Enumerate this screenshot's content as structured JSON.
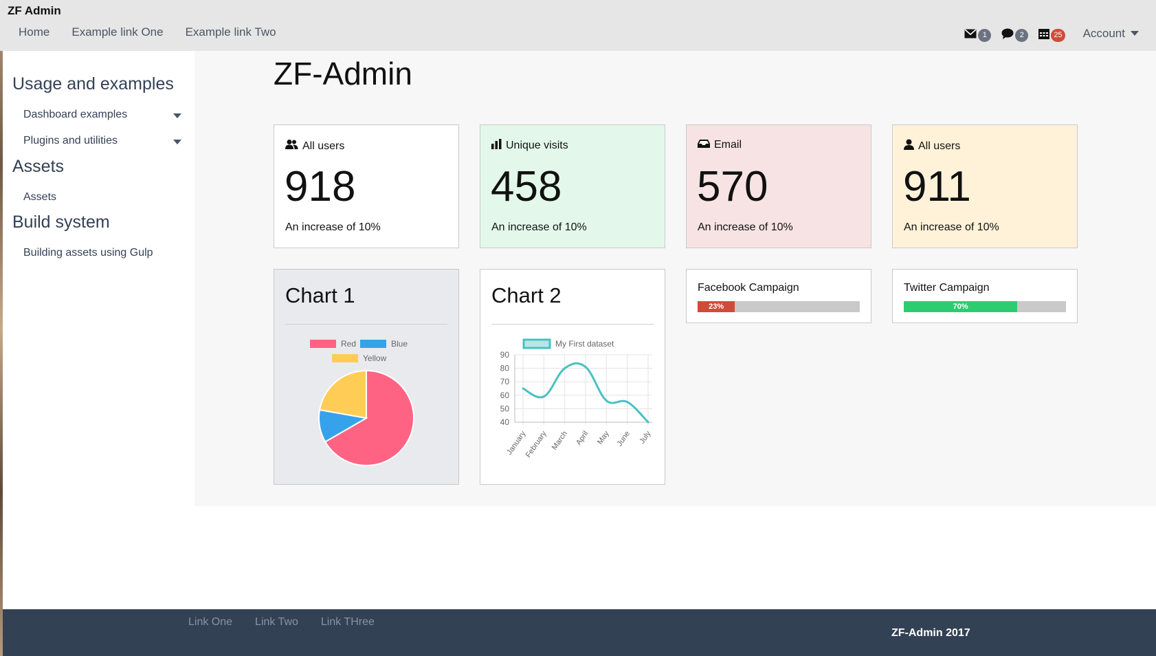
{
  "app": {
    "brand": "ZF Admin"
  },
  "nav": {
    "links": [
      "Home",
      "Example link One",
      "Example link Two"
    ],
    "notifications": [
      {
        "icon": "envelope-icon",
        "count": "1",
        "color": "#6b7280"
      },
      {
        "icon": "comment-icon",
        "count": "2",
        "color": "#6b7280"
      },
      {
        "icon": "calendar-icon",
        "count": "25",
        "color": "#d14b3a"
      }
    ],
    "account_label": "Account"
  },
  "sidebar": {
    "sections": [
      {
        "heading": "Usage and examples",
        "items": [
          {
            "label": "Dashboard examples",
            "dropdown": true
          },
          {
            "label": "Plugins and utilities",
            "dropdown": true
          }
        ]
      },
      {
        "heading": "Assets",
        "items": [
          {
            "label": "Assets",
            "dropdown": false
          }
        ]
      },
      {
        "heading": "Build system",
        "items": [
          {
            "label": "Building assets using Gulp",
            "dropdown": false
          }
        ]
      }
    ]
  },
  "main": {
    "title": "ZF-Admin",
    "stats": [
      {
        "icon": "users-icon",
        "label": "All users",
        "value": "918",
        "note": "An increase of 10%",
        "bg": "#ffffff"
      },
      {
        "icon": "bar-chart-icon",
        "label": "Unique visits",
        "value": "458",
        "note": "An increase of 10%",
        "bg": "#e3f8ea"
      },
      {
        "icon": "inbox-icon",
        "label": "Email",
        "value": "570",
        "note": "An increase of 10%",
        "bg": "#f7e3e3"
      },
      {
        "icon": "user-icon",
        "label": "All users",
        "value": "911",
        "note": "An increase of 10%",
        "bg": "#fff2d9"
      }
    ],
    "campaigns": [
      {
        "label": "Facebook Campaign",
        "percent": 23,
        "percent_label": "23%",
        "color": "#d14b3a"
      },
      {
        "label": "Twitter Campaign",
        "percent": 70,
        "percent_label": "70%",
        "color": "#2ecc71"
      }
    ]
  },
  "chart_data": [
    {
      "type": "pie",
      "title": "Chart 1",
      "categories": [
        "Red",
        "Blue",
        "Yellow"
      ],
      "values": [
        300,
        50,
        100
      ],
      "colors": [
        "#ff6384",
        "#36a2eb",
        "#ffcd56"
      ],
      "legend": "top"
    },
    {
      "type": "line",
      "title": "Chart 2",
      "categories": [
        "January",
        "February",
        "March",
        "April",
        "May",
        "June",
        "July"
      ],
      "series": [
        {
          "name": "My First dataset",
          "values": [
            65,
            59,
            80,
            81,
            56,
            55,
            40
          ],
          "color": "#4bc0c0"
        }
      ],
      "ylim": [
        40,
        90
      ],
      "yticks": [
        40,
        50,
        60,
        70,
        80,
        90
      ],
      "grid": true,
      "legend": "top"
    }
  ],
  "footer": {
    "links": [
      "Link One",
      "Link Two",
      "Link THree"
    ],
    "copyright": "ZF-Admin 2017"
  }
}
